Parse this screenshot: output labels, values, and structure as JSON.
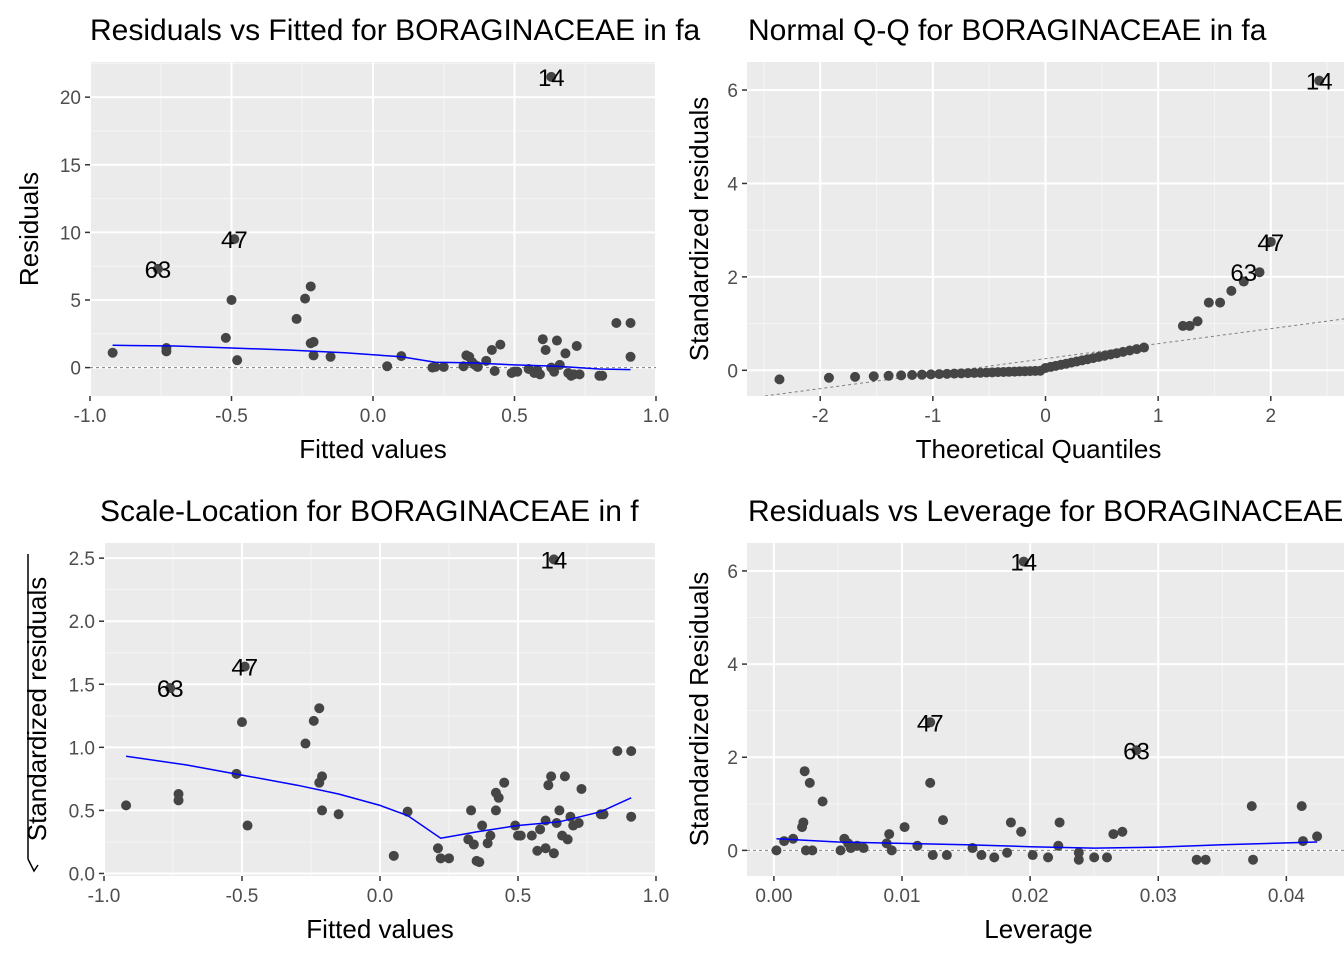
{
  "chart_data": [
    {
      "type": "scatter",
      "title": "Residuals vs Fitted for BORAGINACEAE in fa",
      "xlabel": "Fitted values",
      "ylabel": "Residuals",
      "xlim": [
        -1.0,
        1.0
      ],
      "ylim": [
        -2.1,
        22.6
      ],
      "xticks": [
        -1.0,
        -0.5,
        0.0,
        0.5,
        1.0
      ],
      "xtick_labels": [
        "-1.0",
        "-0.5",
        "0.0",
        "0.5",
        "1.0"
      ],
      "yticks": [
        0,
        5,
        10,
        15,
        20
      ],
      "ytick_labels": [
        "0",
        "5",
        "10",
        "15",
        "20"
      ],
      "reference_line": 0,
      "points": [
        [
          -0.92,
          1.1
        ],
        [
          -0.73,
          1.2
        ],
        [
          -0.73,
          1.45
        ],
        [
          -0.52,
          2.2
        ],
        [
          -0.5,
          5.0
        ],
        [
          -0.48,
          0.55
        ],
        [
          -0.27,
          3.6
        ],
        [
          -0.24,
          5.1
        ],
        [
          -0.22,
          6.0
        ],
        [
          -0.22,
          1.8
        ],
        [
          -0.21,
          1.9
        ],
        [
          -0.21,
          0.9
        ],
        [
          -0.15,
          0.8
        ],
        [
          0.05,
          0.1
        ],
        [
          0.1,
          0.85
        ],
        [
          0.21,
          0.0
        ],
        [
          0.22,
          0.05
        ],
        [
          0.25,
          0.05
        ],
        [
          0.32,
          0.1
        ],
        [
          0.33,
          0.9
        ],
        [
          0.34,
          0.8
        ],
        [
          0.35,
          0.4
        ],
        [
          0.36,
          0.2
        ],
        [
          0.37,
          0.1
        ],
        [
          0.37,
          0.05
        ],
        [
          0.4,
          0.5
        ],
        [
          0.42,
          1.3
        ],
        [
          0.43,
          -0.25
        ],
        [
          0.45,
          1.7
        ],
        [
          0.49,
          -0.4
        ],
        [
          0.5,
          -0.3
        ],
        [
          0.51,
          -0.3
        ],
        [
          0.55,
          -0.1
        ],
        [
          0.57,
          -0.4
        ],
        [
          0.58,
          -0.2
        ],
        [
          0.59,
          -0.5
        ],
        [
          0.6,
          2.1
        ],
        [
          0.61,
          1.3
        ],
        [
          0.63,
          0.0
        ],
        [
          0.64,
          -0.3
        ],
        [
          0.65,
          2.0
        ],
        [
          0.66,
          0.2
        ],
        [
          0.68,
          1.05
        ],
        [
          0.69,
          -0.4
        ],
        [
          0.7,
          -0.6
        ],
        [
          0.71,
          -0.5
        ],
        [
          0.72,
          1.6
        ],
        [
          0.73,
          -0.5
        ],
        [
          0.8,
          -0.6
        ],
        [
          0.81,
          -0.6
        ],
        [
          0.86,
          3.3
        ],
        [
          0.91,
          3.3
        ],
        [
          0.91,
          0.8
        ],
        [
          0.63,
          21.5
        ],
        [
          -0.49,
          9.5
        ],
        [
          -0.76,
          7.3
        ]
      ],
      "smooth": [
        [
          -0.92,
          1.65
        ],
        [
          -0.7,
          1.6
        ],
        [
          -0.5,
          1.45
        ],
        [
          -0.3,
          1.3
        ],
        [
          -0.1,
          1.1
        ],
        [
          0.1,
          0.8
        ],
        [
          0.22,
          0.4
        ],
        [
          0.35,
          0.35
        ],
        [
          0.5,
          0.2
        ],
        [
          0.65,
          0.1
        ],
        [
          0.8,
          -0.1
        ],
        [
          0.91,
          -0.15
        ]
      ],
      "labels": [
        {
          "text": "14",
          "x": 0.63,
          "y": 21.5
        },
        {
          "text": "47",
          "x": -0.49,
          "y": 9.5
        },
        {
          "text": "63",
          "x": -0.76,
          "y": 7.3
        }
      ]
    },
    {
      "type": "scatter",
      "title": "Normal Q-Q for BORAGINACEAE in fa",
      "xlabel": "Theoretical Quantiles",
      "ylabel": "Standardized residuals",
      "xlim": [
        -2.65,
        2.65
      ],
      "ylim": [
        -0.55,
        6.6
      ],
      "xticks": [
        -2,
        -1,
        0,
        1,
        2
      ],
      "xtick_labels": [
        "-2",
        "-1",
        "0",
        "1",
        "2"
      ],
      "yticks": [
        0,
        2,
        4,
        6
      ],
      "ytick_labels": [
        "0",
        "2",
        "4",
        "6"
      ],
      "qq_line": [
        [
          -2.65,
          -0.6
        ],
        [
          2.65,
          1.1
        ]
      ],
      "n_points": 55,
      "points_tail": [
        [
          1.22,
          0.95
        ],
        [
          1.28,
          0.95
        ],
        [
          1.35,
          1.05
        ],
        [
          1.45,
          1.45
        ],
        [
          1.55,
          1.45
        ],
        [
          1.65,
          1.7
        ],
        [
          1.76,
          1.9
        ],
        [
          1.9,
          2.1
        ],
        [
          2.0,
          2.75
        ],
        [
          2.43,
          6.2
        ]
      ],
      "labels": [
        {
          "text": "14",
          "x": 2.43,
          "y": 6.2
        },
        {
          "text": "47",
          "x": 2.0,
          "y": 2.75
        },
        {
          "text": "63",
          "x": 1.76,
          "y": 2.1
        }
      ]
    },
    {
      "type": "scatter",
      "title": "Scale-Location for BORAGINACEAE in f",
      "xlabel": "Fitted values",
      "ylabel": "√Standardized residuals",
      "ylabel_text": "Standardized residuals",
      "xlim": [
        -1.0,
        1.0
      ],
      "ylim": [
        -0.02,
        2.62
      ],
      "xticks": [
        -1.0,
        -0.5,
        0.0,
        0.5,
        1.0
      ],
      "xtick_labels": [
        "-1.0",
        "-0.5",
        "0.0",
        "0.5",
        "1.0"
      ],
      "yticks": [
        0.0,
        0.5,
        1.0,
        1.5,
        2.0,
        2.5
      ],
      "ytick_labels": [
        "0.0",
        "0.5",
        "1.0",
        "1.5",
        "2.0",
        "2.5"
      ],
      "points": [
        [
          -0.92,
          0.54
        ],
        [
          -0.73,
          0.58
        ],
        [
          -0.73,
          0.63
        ],
        [
          -0.52,
          0.79
        ],
        [
          -0.5,
          1.2
        ],
        [
          -0.48,
          0.38
        ],
        [
          -0.27,
          1.03
        ],
        [
          -0.24,
          1.21
        ],
        [
          -0.22,
          1.31
        ],
        [
          -0.22,
          0.72
        ],
        [
          -0.21,
          0.77
        ],
        [
          -0.21,
          0.5
        ],
        [
          -0.15,
          0.47
        ],
        [
          0.05,
          0.14
        ],
        [
          0.1,
          0.49
        ],
        [
          0.21,
          0.2
        ],
        [
          0.22,
          0.12
        ],
        [
          0.25,
          0.12
        ],
        [
          0.32,
          0.27
        ],
        [
          0.33,
          0.5
        ],
        [
          0.34,
          0.23
        ],
        [
          0.35,
          0.1
        ],
        [
          0.36,
          0.09
        ],
        [
          0.37,
          0.38
        ],
        [
          0.39,
          0.24
        ],
        [
          0.4,
          0.3
        ],
        [
          0.42,
          0.5
        ],
        [
          0.42,
          0.64
        ],
        [
          0.43,
          0.6
        ],
        [
          0.45,
          0.72
        ],
        [
          0.49,
          0.38
        ],
        [
          0.5,
          0.3
        ],
        [
          0.51,
          0.3
        ],
        [
          0.55,
          0.3
        ],
        [
          0.57,
          0.18
        ],
        [
          0.58,
          0.35
        ],
        [
          0.6,
          0.42
        ],
        [
          0.6,
          0.2
        ],
        [
          0.61,
          0.7
        ],
        [
          0.62,
          0.77
        ],
        [
          0.63,
          0.16
        ],
        [
          0.64,
          0.4
        ],
        [
          0.65,
          0.5
        ],
        [
          0.66,
          0.3
        ],
        [
          0.67,
          0.77
        ],
        [
          0.68,
          0.27
        ],
        [
          0.69,
          0.45
        ],
        [
          0.7,
          0.38
        ],
        [
          0.72,
          0.4
        ],
        [
          0.73,
          0.67
        ],
        [
          0.8,
          0.47
        ],
        [
          0.81,
          0.47
        ],
        [
          0.86,
          0.97
        ],
        [
          0.91,
          0.97
        ],
        [
          0.91,
          0.45
        ],
        [
          0.63,
          2.49
        ],
        [
          -0.49,
          1.64
        ],
        [
          -0.76,
          1.47
        ]
      ],
      "smooth": [
        [
          -0.92,
          0.93
        ],
        [
          -0.7,
          0.86
        ],
        [
          -0.5,
          0.78
        ],
        [
          -0.3,
          0.7
        ],
        [
          -0.15,
          0.63
        ],
        [
          0.0,
          0.54
        ],
        [
          0.1,
          0.46
        ],
        [
          0.22,
          0.28
        ],
        [
          0.35,
          0.33
        ],
        [
          0.5,
          0.38
        ],
        [
          0.65,
          0.41
        ],
        [
          0.8,
          0.49
        ],
        [
          0.91,
          0.6
        ]
      ],
      "labels": [
        {
          "text": "14",
          "x": 0.63,
          "y": 2.49
        },
        {
          "text": "47",
          "x": -0.49,
          "y": 1.64
        },
        {
          "text": "63",
          "x": -0.76,
          "y": 1.47
        }
      ]
    },
    {
      "type": "scatter",
      "title": "Residuals vs Leverage for BORAGINACEAE",
      "xlabel": "Leverage",
      "ylabel": "Standardized Residuals",
      "xlim": [
        -0.0021,
        0.0445
      ],
      "ylim": [
        -0.55,
        6.6
      ],
      "xticks": [
        0.0,
        0.01,
        0.02,
        0.03,
        0.04
      ],
      "xtick_labels": [
        "0.00",
        "0.01",
        "0.02",
        "0.03",
        "0.04"
      ],
      "yticks": [
        0,
        2,
        4,
        6
      ],
      "ytick_labels": [
        "0",
        "2",
        "4",
        "6"
      ],
      "reference_line": 0,
      "points": [
        [
          0.0002,
          0.0
        ],
        [
          0.0008,
          0.2
        ],
        [
          0.0015,
          0.25
        ],
        [
          0.0022,
          0.5
        ],
        [
          0.0023,
          0.6
        ],
        [
          0.0024,
          1.7
        ],
        [
          0.0025,
          0.0
        ],
        [
          0.003,
          0.0
        ],
        [
          0.0028,
          1.45
        ],
        [
          0.0038,
          1.05
        ],
        [
          0.0052,
          0.0
        ],
        [
          0.0055,
          0.25
        ],
        [
          0.0058,
          0.15
        ],
        [
          0.006,
          0.05
        ],
        [
          0.0065,
          0.1
        ],
        [
          0.007,
          0.05
        ],
        [
          0.0088,
          0.15
        ],
        [
          0.009,
          0.35
        ],
        [
          0.0092,
          0.0
        ],
        [
          0.0102,
          0.5
        ],
        [
          0.0112,
          0.1
        ],
        [
          0.0122,
          1.45
        ],
        [
          0.0124,
          -0.1
        ],
        [
          0.0132,
          0.65
        ],
        [
          0.0135,
          -0.1
        ],
        [
          0.0155,
          0.05
        ],
        [
          0.0162,
          -0.1
        ],
        [
          0.0172,
          -0.15
        ],
        [
          0.0182,
          -0.05
        ],
        [
          0.0185,
          0.6
        ],
        [
          0.0193,
          0.4
        ],
        [
          0.0202,
          -0.1
        ],
        [
          0.0214,
          -0.15
        ],
        [
          0.0222,
          0.1
        ],
        [
          0.0223,
          0.6
        ],
        [
          0.0238,
          -0.2
        ],
        [
          0.0238,
          -0.05
        ],
        [
          0.025,
          -0.15
        ],
        [
          0.026,
          -0.15
        ],
        [
          0.0265,
          0.35
        ],
        [
          0.0272,
          0.4
        ],
        [
          0.033,
          -0.2
        ],
        [
          0.0337,
          -0.2
        ],
        [
          0.0373,
          0.95
        ],
        [
          0.0374,
          -0.2
        ],
        [
          0.0412,
          0.95
        ],
        [
          0.0413,
          0.2
        ],
        [
          0.0424,
          0.3
        ],
        [
          0.0195,
          6.2
        ],
        [
          0.0122,
          2.75
        ],
        [
          0.0283,
          2.15
        ]
      ],
      "smooth": [
        [
          0.0002,
          0.25
        ],
        [
          0.005,
          0.18
        ],
        [
          0.01,
          0.15
        ],
        [
          0.015,
          0.12
        ],
        [
          0.02,
          0.08
        ],
        [
          0.025,
          0.05
        ],
        [
          0.03,
          0.07
        ],
        [
          0.035,
          0.12
        ],
        [
          0.0424,
          0.18
        ]
      ],
      "labels": [
        {
          "text": "14",
          "x": 0.0195,
          "y": 6.2
        },
        {
          "text": "47",
          "x": 0.0122,
          "y": 2.75
        },
        {
          "text": "63",
          "x": 0.0283,
          "y": 2.15
        }
      ]
    }
  ]
}
